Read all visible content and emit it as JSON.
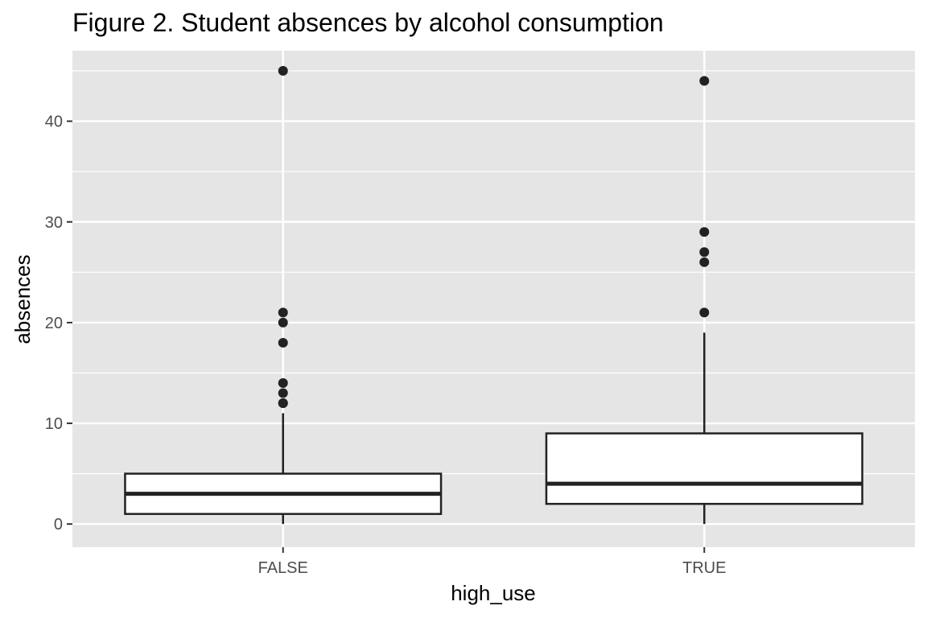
{
  "chart_data": {
    "type": "boxplot",
    "title": "Figure 2. Student absences by alcohol consumption",
    "xlabel": "high_use",
    "ylabel": "absences",
    "categories": [
      "FALSE",
      "TRUE"
    ],
    "ylim": [
      -2.3,
      47
    ],
    "y_ticks": [
      0,
      10,
      20,
      30,
      40
    ],
    "grid": true,
    "background": "#e5e5e5",
    "boxes": [
      {
        "category": "FALSE",
        "whisker_low": 0,
        "q1": 1,
        "median": 3,
        "q3": 5,
        "whisker_high": 11,
        "outliers": [
          12,
          12,
          13,
          14,
          18,
          20,
          21,
          45
        ]
      },
      {
        "category": "TRUE",
        "whisker_low": 0,
        "q1": 2,
        "median": 4,
        "q3": 9,
        "whisker_high": 19,
        "outliers": [
          21,
          26,
          27,
          29,
          44
        ]
      }
    ]
  }
}
